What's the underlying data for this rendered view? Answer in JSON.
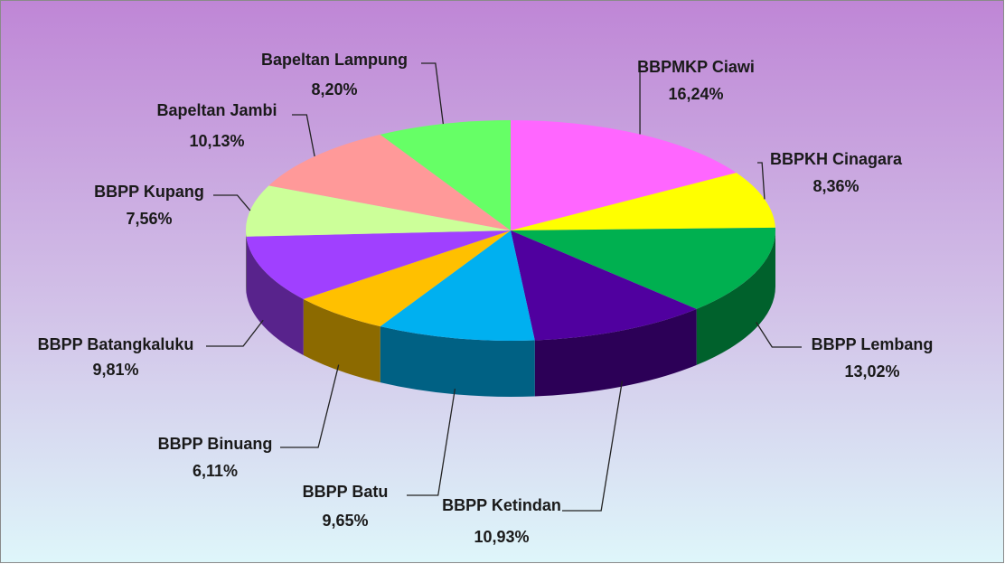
{
  "chart_data": {
    "type": "pie3d",
    "categories": [
      "BBPMKP Ciawi",
      "BBPKH Cinagara",
      "BBPP Lembang",
      "BBPP Ketindan",
      "BBPP Batu",
      "BBPP Binuang",
      "BBPP Batangkaluku",
      "BBPP Kupang",
      "Bapeltan Jambi",
      "Bapeltan Lampung"
    ],
    "values": [
      16.24,
      8.36,
      13.02,
      10.93,
      9.65,
      6.11,
      9.81,
      7.56,
      10.13,
      8.2
    ],
    "value_labels": [
      "16,24%",
      "8,36%",
      "13,02%",
      "10,93%",
      "9,65%",
      "6,11%",
      "9,81%",
      "7,56%",
      "10,13%",
      "8,20%"
    ],
    "colors": [
      "#ff66ff",
      "#ffff00",
      "#00b050",
      "#50009f",
      "#00b0f0",
      "#ffc000",
      "#a040ff",
      "#ccff99",
      "#ff9999",
      "#66ff66"
    ]
  }
}
